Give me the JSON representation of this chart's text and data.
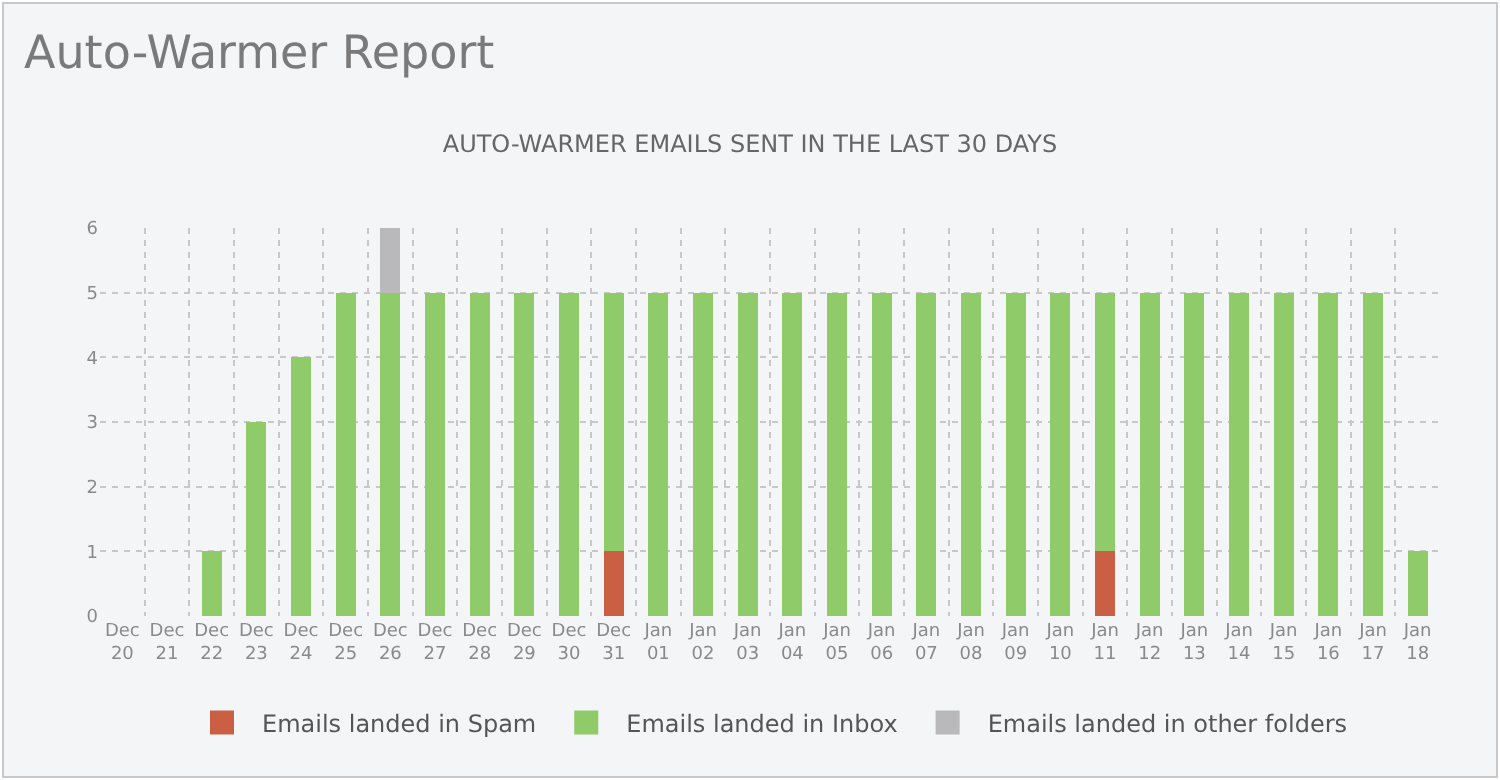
{
  "chart_data": {
    "type": "bar",
    "title": "Auto-Warmer Report",
    "subtitle": "AUTO-WARMER EMAILS SENT IN THE LAST 30 DAYS",
    "categories": [
      "Dec 20",
      "Dec 21",
      "Dec 22",
      "Dec 23",
      "Dec 24",
      "Dec 25",
      "Dec 26",
      "Dec 27",
      "Dec 28",
      "Dec 29",
      "Dec 30",
      "Dec 31",
      "Jan 01",
      "Jan 02",
      "Jan 03",
      "Jan 04",
      "Jan 05",
      "Jan 06",
      "Jan 07",
      "Jan 08",
      "Jan 09",
      "Jan 10",
      "Jan 11",
      "Jan 12",
      "Jan 13",
      "Jan 14",
      "Jan 15",
      "Jan 16",
      "Jan 17",
      "Jan 18"
    ],
    "series": [
      {
        "name": "Emails landed in Spam",
        "color": "#cb5f44",
        "values": [
          0,
          0,
          0,
          0,
          0,
          0,
          0,
          0,
          0,
          0,
          0,
          1,
          0,
          0,
          0,
          0,
          0,
          0,
          0,
          0,
          0,
          0,
          1,
          0,
          0,
          0,
          0,
          0,
          0,
          0
        ]
      },
      {
        "name": "Emails landed in Inbox",
        "color": "#8fcb69",
        "values": [
          0,
          0,
          1,
          3,
          4,
          5,
          5,
          5,
          5,
          5,
          5,
          4,
          5,
          5,
          5,
          5,
          5,
          5,
          5,
          5,
          5,
          5,
          4,
          5,
          5,
          5,
          5,
          5,
          5,
          1
        ]
      },
      {
        "name": "Emails landed in other folders",
        "color": "#b9b9bb",
        "values": [
          0,
          0,
          0,
          0,
          0,
          0,
          1,
          0,
          0,
          0,
          0,
          0,
          0,
          0,
          0,
          0,
          0,
          0,
          0,
          0,
          0,
          0,
          0,
          0,
          0,
          0,
          0,
          0,
          0,
          0
        ]
      }
    ],
    "stacked": true,
    "ylim": [
      0,
      6
    ],
    "yticks": [
      0,
      1,
      2,
      3,
      4,
      5,
      6
    ],
    "grid": true,
    "legend": "bottom"
  }
}
